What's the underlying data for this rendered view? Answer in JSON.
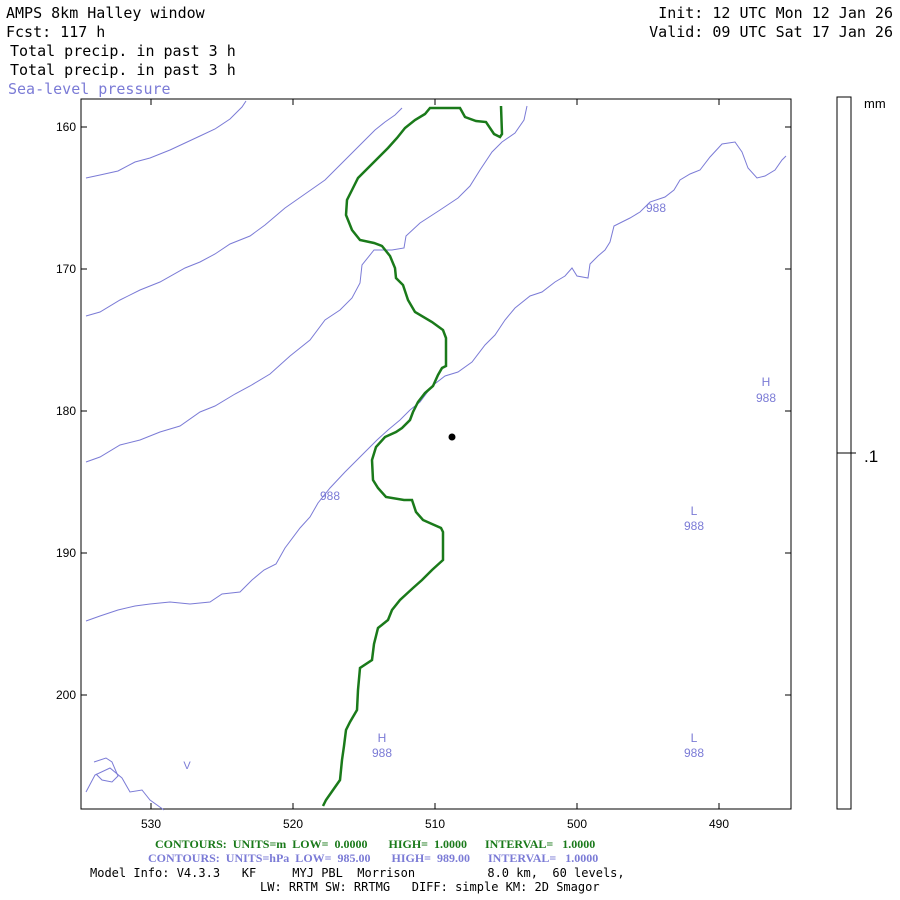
{
  "header": {
    "title": "AMPS 8km Halley window",
    "forecast": "Fcst: 117 h",
    "field1": "Total precip. in past 3 h",
    "field2": "Total precip. in past 3 h",
    "field3": "Sea-level pressure",
    "init": "Init: 12 UTC Mon 12 Jan 26",
    "valid": "Valid: 09 UTC Sat 17 Jan 26"
  },
  "axes": {
    "y_ticks": [
      "160",
      "170",
      "180",
      "190",
      "200"
    ],
    "x_ticks": [
      "530",
      "520",
      "510",
      "500",
      "490"
    ]
  },
  "colorbar": {
    "unit": "mm",
    "label": ".1"
  },
  "map_labels": {
    "isobar_988_a": "988",
    "isobar_988_b": "988",
    "high_1_letter": "H",
    "high_1_value": "988",
    "high_2_letter": "H",
    "high_2_value": "988",
    "low_1_letter": "L",
    "low_1_value": "988",
    "low_2_letter": "L",
    "low_2_value": "988",
    "small_v": "V"
  },
  "footer": {
    "contours1": "CONTOURS:  UNITS=m  LOW=  0.0000       HIGH=  1.0000      INTERVAL=   1.0000",
    "contours2": "CONTOURS:  UNITS=hPa  LOW=  985.00       HIGH=  989.00      INTERVAL=   1.0000",
    "model_info": "Model Info: V4.3.3   KF     MYJ PBL  Morrison          8.0 km,  60 levels,",
    "physics": "LW: RRTM SW: RRTMG   DIFF: simple KM: 2D Smagor"
  },
  "colors": {
    "precip_contour": "#1a7a1a",
    "pressure_contour": "#7b7bd6",
    "text": "#000000"
  }
}
